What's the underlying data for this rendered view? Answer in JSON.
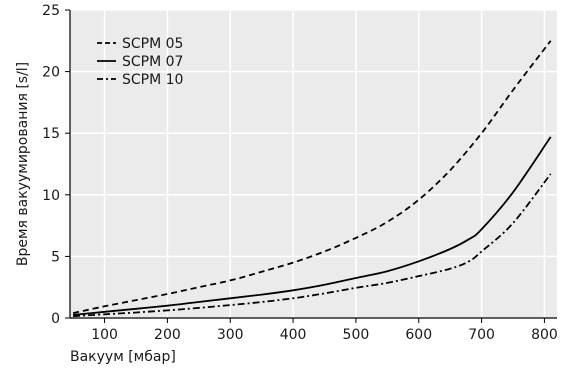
{
  "chart_data": {
    "type": "line",
    "xlabel": "Вакуум [мбар]",
    "ylabel": "Время вакуумирования [s/l]",
    "xlim": [
      45,
      820
    ],
    "ylim": [
      0,
      25
    ],
    "xticks": [
      100,
      200,
      300,
      400,
      500,
      600,
      700,
      800
    ],
    "yticks": [
      0,
      5,
      10,
      15,
      20,
      25
    ],
    "grid": true,
    "legend_position": "top-left",
    "colors": {
      "background": "#ebebeb",
      "grid": "#ffffff",
      "line": "#000000"
    },
    "series": [
      {
        "name": "SCPM 05",
        "dash": "dashed",
        "x": [
          50,
          100,
          150,
          200,
          250,
          300,
          350,
          400,
          450,
          500,
          550,
          600,
          650,
          700,
          750,
          810
        ],
        "y": [
          0.4,
          0.95,
          1.45,
          1.95,
          2.5,
          3.05,
          3.75,
          4.5,
          5.4,
          6.5,
          7.8,
          9.6,
          12.0,
          15.0,
          18.5,
          22.5
        ]
      },
      {
        "name": "SCPM 07",
        "dash": "solid",
        "x": [
          50,
          100,
          150,
          200,
          250,
          300,
          350,
          400,
          450,
          500,
          550,
          600,
          650,
          680,
          700,
          750,
          810
        ],
        "y": [
          0.25,
          0.5,
          0.75,
          1.0,
          1.3,
          1.6,
          1.9,
          2.25,
          2.7,
          3.25,
          3.8,
          4.6,
          5.6,
          6.4,
          7.2,
          10.2,
          14.7
        ]
      },
      {
        "name": "SCPM 10",
        "dash": "dash-dot",
        "x": [
          50,
          100,
          150,
          200,
          250,
          300,
          350,
          400,
          450,
          500,
          550,
          600,
          650,
          680,
          700,
          750,
          810
        ],
        "y": [
          0.15,
          0.3,
          0.45,
          0.62,
          0.82,
          1.05,
          1.3,
          1.6,
          2.0,
          2.45,
          2.85,
          3.4,
          4.0,
          4.6,
          5.4,
          7.7,
          11.7
        ]
      }
    ]
  }
}
